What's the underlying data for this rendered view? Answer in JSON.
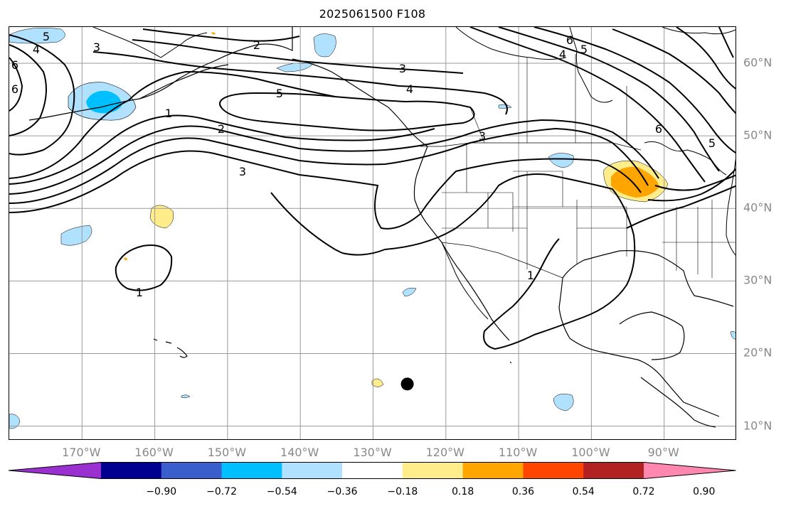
{
  "title": "2025061500 F108",
  "map": {
    "lon_labels": [
      {
        "lon": -170,
        "text": "170°W"
      },
      {
        "lon": -160,
        "text": "160°W"
      },
      {
        "lon": -150,
        "text": "150°W"
      },
      {
        "lon": -140,
        "text": "140°W"
      },
      {
        "lon": -130,
        "text": "130°W"
      },
      {
        "lon": -120,
        "text": "120°W"
      },
      {
        "lon": -110,
        "text": "110°W"
      },
      {
        "lon": -100,
        "text": "100°W"
      },
      {
        "lon": -90,
        "text": "90°W"
      }
    ],
    "lat_labels": [
      {
        "lat": 60,
        "text": "60°N"
      },
      {
        "lat": 50,
        "text": "50°N"
      },
      {
        "lat": 40,
        "text": "40°N"
      },
      {
        "lat": 30,
        "text": "30°N"
      },
      {
        "lat": 20,
        "text": "20°N"
      },
      {
        "lat": 10,
        "text": "10°N"
      }
    ],
    "lon_range": [
      -180,
      -80
    ],
    "lat_range": [
      8,
      65
    ],
    "grid": true,
    "contour_labels": [
      "2",
      "3",
      "4",
      "5",
      "6",
      "1",
      "2",
      "3",
      "4",
      "5",
      "6",
      "6",
      "4",
      "5",
      "3",
      "3",
      "1",
      "1",
      "6",
      "5"
    ],
    "marker": {
      "lon": -125.3,
      "lat": 15.8,
      "name": "black-dot-marker"
    }
  },
  "colorbar": {
    "colors": [
      "#9b30d0",
      "#000090",
      "#3a5fcd",
      "#00bfff",
      "#b0e2ff",
      "#ffffff",
      "#ffec8b",
      "#ffa500",
      "#ff4500",
      "#b22222",
      "#ff87b0"
    ],
    "labels": [
      "−0.90",
      "−0.72",
      "−0.54",
      "−0.36",
      "−0.18",
      "0.18",
      "0.36",
      "0.54",
      "0.72",
      "0.90"
    ]
  }
}
